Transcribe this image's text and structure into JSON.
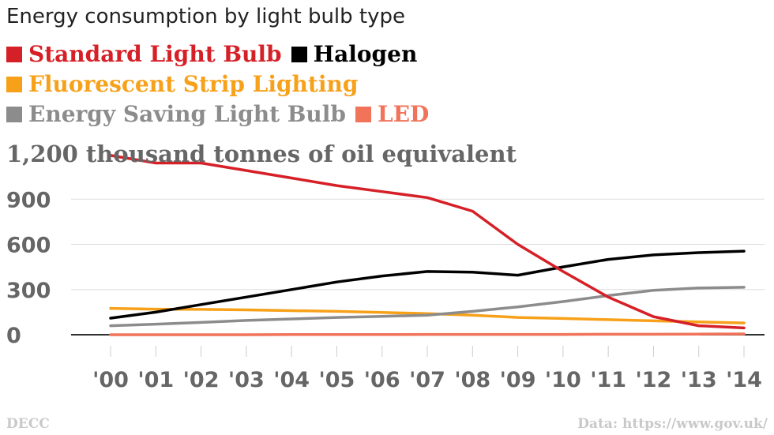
{
  "title": "Energy consumption by light bulb type",
  "source_left": "DECC",
  "source_right": "Data: https://www.gov.uk/",
  "chart_data": {
    "type": "line",
    "title": "Energy consumption by light bulb type",
    "ylabel": "thousand tonnes of oil equivalent",
    "ylim": [
      0,
      1200
    ],
    "yticks": [
      0,
      300,
      600,
      900,
      1200
    ],
    "ytick_labels": [
      "0",
      "300",
      "600",
      "900",
      "1,200"
    ],
    "unit_label": "1,200 thousand tonnes of oil equivalent",
    "x": [
      "'00",
      "'01",
      "'02",
      "'03",
      "'04",
      "'05",
      "'06",
      "'07",
      "'08",
      "'09",
      "'10",
      "'11",
      "'12",
      "'13",
      "'14"
    ],
    "grid": true,
    "legend_position": "top-left",
    "series": [
      {
        "name": "Standard Light Bulb",
        "color": "#d62027",
        "values": [
          1190,
          1140,
          1140,
          1090,
          1040,
          990,
          950,
          910,
          820,
          600,
          420,
          250,
          120,
          60,
          45
        ]
      },
      {
        "name": "Halogen",
        "color": "#000000",
        "values": [
          110,
          150,
          200,
          250,
          300,
          350,
          390,
          420,
          415,
          395,
          450,
          500,
          530,
          545,
          555
        ]
      },
      {
        "name": "Fluorescent Strip Lighting",
        "color": "#f7a11a",
        "values": [
          175,
          170,
          168,
          165,
          160,
          155,
          148,
          140,
          130,
          115,
          108,
          100,
          92,
          85,
          78
        ]
      },
      {
        "name": "Energy Saving Light Bulb",
        "color": "#8c8c8c",
        "values": [
          60,
          70,
          82,
          95,
          105,
          115,
          122,
          130,
          155,
          185,
          220,
          260,
          295,
          310,
          315
        ]
      },
      {
        "name": "LED",
        "color": "#f0735a",
        "values": [
          0,
          0,
          0,
          0,
          1,
          1,
          1,
          2,
          2,
          2,
          2,
          3,
          3,
          4,
          5
        ]
      }
    ]
  }
}
